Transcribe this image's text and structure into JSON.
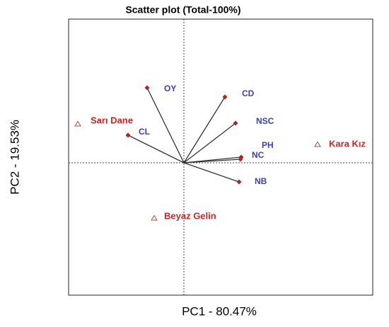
{
  "chart_data": {
    "type": "biplot",
    "title": "Scatter plot (Total-100%)",
    "xlabel": "PC1 - 80.47%",
    "ylabel": "PC2 - 19.53%",
    "xlim": [
      -1.63,
      2.67
    ],
    "ylim": [
      -1.87,
      2.03
    ],
    "variables": {
      "color": "#b22222",
      "label_color": "#3c3cc8",
      "labels": [
        "OY",
        "CD",
        "NSC",
        "PH",
        "NC",
        "NB",
        "CL"
      ],
      "x": [
        -0.52,
        0.58,
        0.73,
        0.81,
        0.8,
        0.78,
        -0.79
      ],
      "y": [
        1.06,
        0.93,
        0.56,
        0.08,
        0.05,
        -0.27,
        0.39
      ]
    },
    "observations": {
      "color": "#a05050",
      "label_color": "#e02020",
      "labels": [
        "Sarı Dane",
        "Kara Kız",
        "Beyaz Gelin"
      ],
      "x": [
        -1.5,
        1.89,
        -0.42
      ],
      "y": [
        0.55,
        0.26,
        -0.78
      ]
    }
  }
}
